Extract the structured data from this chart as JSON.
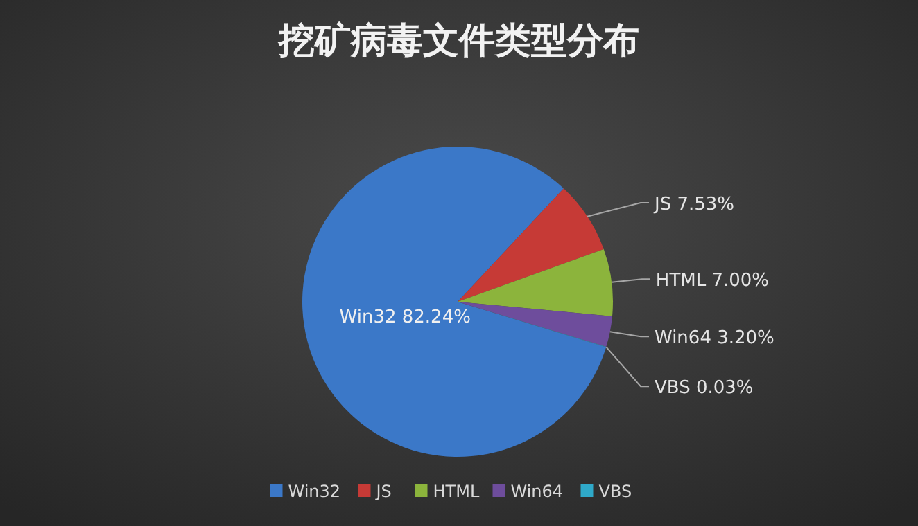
{
  "chart_data": {
    "type": "pie",
    "title": "挖矿病毒文件类型分布",
    "categories": [
      "Win32",
      "JS",
      "HTML",
      "Win64",
      "VBS"
    ],
    "values": [
      82.24,
      7.53,
      7.0,
      3.2,
      0.03
    ],
    "value_labels": [
      "82.24%",
      "7.53%",
      "7.00%",
      "3.20%",
      "0.03%"
    ],
    "colors": [
      "#3b78c8",
      "#c63a36",
      "#8cb43c",
      "#6e4d9c",
      "#2fa9c9"
    ],
    "legend": "bottom"
  }
}
